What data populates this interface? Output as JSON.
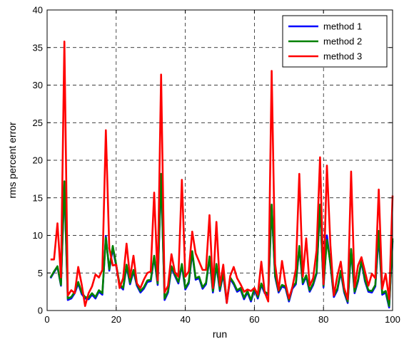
{
  "chart_data": {
    "type": "line",
    "title": "",
    "xlabel": "run",
    "ylabel": "rms percent error",
    "xlim": [
      0,
      100
    ],
    "ylim": [
      0,
      40
    ],
    "xticks": [
      0,
      20,
      40,
      60,
      80,
      100
    ],
    "yticks": [
      0,
      5,
      10,
      15,
      20,
      25,
      30,
      35,
      40
    ],
    "grid": true,
    "grid_style": "dashed",
    "legend_position": "top-right",
    "x": [
      1,
      2,
      3,
      4,
      5,
      6,
      7,
      8,
      9,
      10,
      11,
      12,
      13,
      14,
      15,
      16,
      17,
      18,
      19,
      20,
      21,
      22,
      23,
      24,
      25,
      26,
      27,
      28,
      29,
      30,
      31,
      32,
      33,
      34,
      35,
      36,
      37,
      38,
      39,
      40,
      41,
      42,
      43,
      44,
      45,
      46,
      47,
      48,
      49,
      50,
      51,
      52,
      53,
      54,
      55,
      56,
      57,
      58,
      59,
      60,
      61,
      62,
      63,
      64,
      65,
      66,
      67,
      68,
      69,
      70,
      71,
      72,
      73,
      74,
      75,
      76,
      77,
      78,
      79,
      80,
      81,
      82,
      83,
      84,
      85,
      86,
      87,
      88,
      89,
      90,
      91,
      92,
      93,
      94,
      95,
      96,
      97,
      98,
      99,
      100
    ],
    "series": [
      {
        "name": "method 1",
        "color": "#0000ff",
        "values": [
          4.3,
          5.1,
          5.8,
          3.3,
          16.8,
          1.4,
          1.6,
          2.3,
          3.6,
          2.2,
          1.6,
          1.5,
          2.1,
          1.6,
          2.5,
          2.1,
          9.9,
          5.3,
          8.3,
          5.9,
          3.3,
          2.8,
          5.9,
          3.5,
          5.2,
          3.3,
          2.4,
          2.9,
          3.8,
          3.9,
          7.1,
          3.4,
          17.9,
          1.4,
          2.4,
          5.7,
          4.6,
          3.6,
          6.0,
          2.8,
          3.6,
          7.7,
          4.1,
          4.3,
          2.9,
          3.5,
          7.0,
          2.4,
          6.0,
          2.6,
          4.8,
          1.0,
          4.2,
          3.5,
          2.5,
          2.8,
          1.5,
          2.4,
          1.2,
          2.8,
          1.6,
          3.4,
          2.3,
          2.0,
          13.9,
          4.5,
          2.4,
          3.2,
          3.0,
          1.2,
          2.9,
          3.5,
          8.4,
          3.5,
          4.5,
          2.5,
          3.4,
          4.9,
          13.9,
          3.1,
          10.0,
          6.1,
          1.8,
          2.7,
          5.1,
          2.4,
          1.0,
          8.0,
          2.3,
          3.9,
          6.5,
          3.9,
          2.5,
          2.4,
          3.2,
          10.0,
          2.1,
          2.4,
          0.4,
          9.3
        ]
      },
      {
        "name": "method 2",
        "color": "#008000",
        "values": [
          4.4,
          5.2,
          5.9,
          3.4,
          17.2,
          1.6,
          1.8,
          2.5,
          3.8,
          2.4,
          1.8,
          1.7,
          2.3,
          1.8,
          2.7,
          2.3,
          9.7,
          5.5,
          8.6,
          6.1,
          3.5,
          3.0,
          6.1,
          3.7,
          5.4,
          3.5,
          2.6,
          3.1,
          4.0,
          4.1,
          7.3,
          3.6,
          18.2,
          1.6,
          2.6,
          5.9,
          4.8,
          3.8,
          6.2,
          3.0,
          3.8,
          7.9,
          4.3,
          4.5,
          3.1,
          3.7,
          7.2,
          2.6,
          6.2,
          2.8,
          5.0,
          1.2,
          4.4,
          3.7,
          2.7,
          3.0,
          1.7,
          2.6,
          1.4,
          3.0,
          1.8,
          3.6,
          2.5,
          2.2,
          14.1,
          4.7,
          2.6,
          3.4,
          3.2,
          1.4,
          3.1,
          3.7,
          8.6,
          3.7,
          4.7,
          2.7,
          3.6,
          5.1,
          14.1,
          3.3,
          9.4,
          6.3,
          2.0,
          2.9,
          5.3,
          2.6,
          1.2,
          8.2,
          2.5,
          4.1,
          6.7,
          4.1,
          2.7,
          2.6,
          3.4,
          10.6,
          2.3,
          2.6,
          0.6,
          9.6
        ]
      },
      {
        "name": "method 3",
        "color": "#ff0000",
        "values": [
          6.8,
          6.8,
          11.6,
          4.4,
          35.8,
          2.0,
          2.7,
          2.3,
          5.8,
          3.5,
          0.6,
          2.3,
          3.2,
          4.8,
          4.4,
          5.4,
          24.0,
          8.3,
          6.0,
          6.1,
          3.0,
          4.3,
          8.9,
          4.4,
          7.3,
          3.6,
          3.0,
          4.1,
          5.0,
          5.2,
          15.7,
          4.0,
          31.4,
          2.4,
          3.3,
          7.5,
          5.1,
          4.5,
          17.4,
          4.5,
          5.2,
          10.5,
          7.6,
          6.5,
          5.4,
          5.4,
          12.7,
          3.0,
          11.8,
          3.3,
          6.1,
          1.0,
          4.6,
          5.8,
          4.3,
          3.5,
          2.5,
          2.8,
          2.6,
          3.0,
          2.1,
          6.5,
          2.4,
          1.2,
          31.9,
          6.2,
          2.7,
          6.6,
          3.6,
          1.6,
          3.1,
          5.5,
          18.2,
          4.5,
          9.6,
          3.3,
          4.3,
          8.0,
          20.4,
          3.5,
          19.3,
          8.7,
          2.0,
          4.6,
          6.5,
          3.0,
          1.5,
          18.5,
          3.1,
          6.0,
          7.1,
          5.2,
          3.3,
          4.9,
          4.3,
          16.1,
          2.9,
          4.9,
          1.5,
          15.3
        ]
      }
    ]
  }
}
